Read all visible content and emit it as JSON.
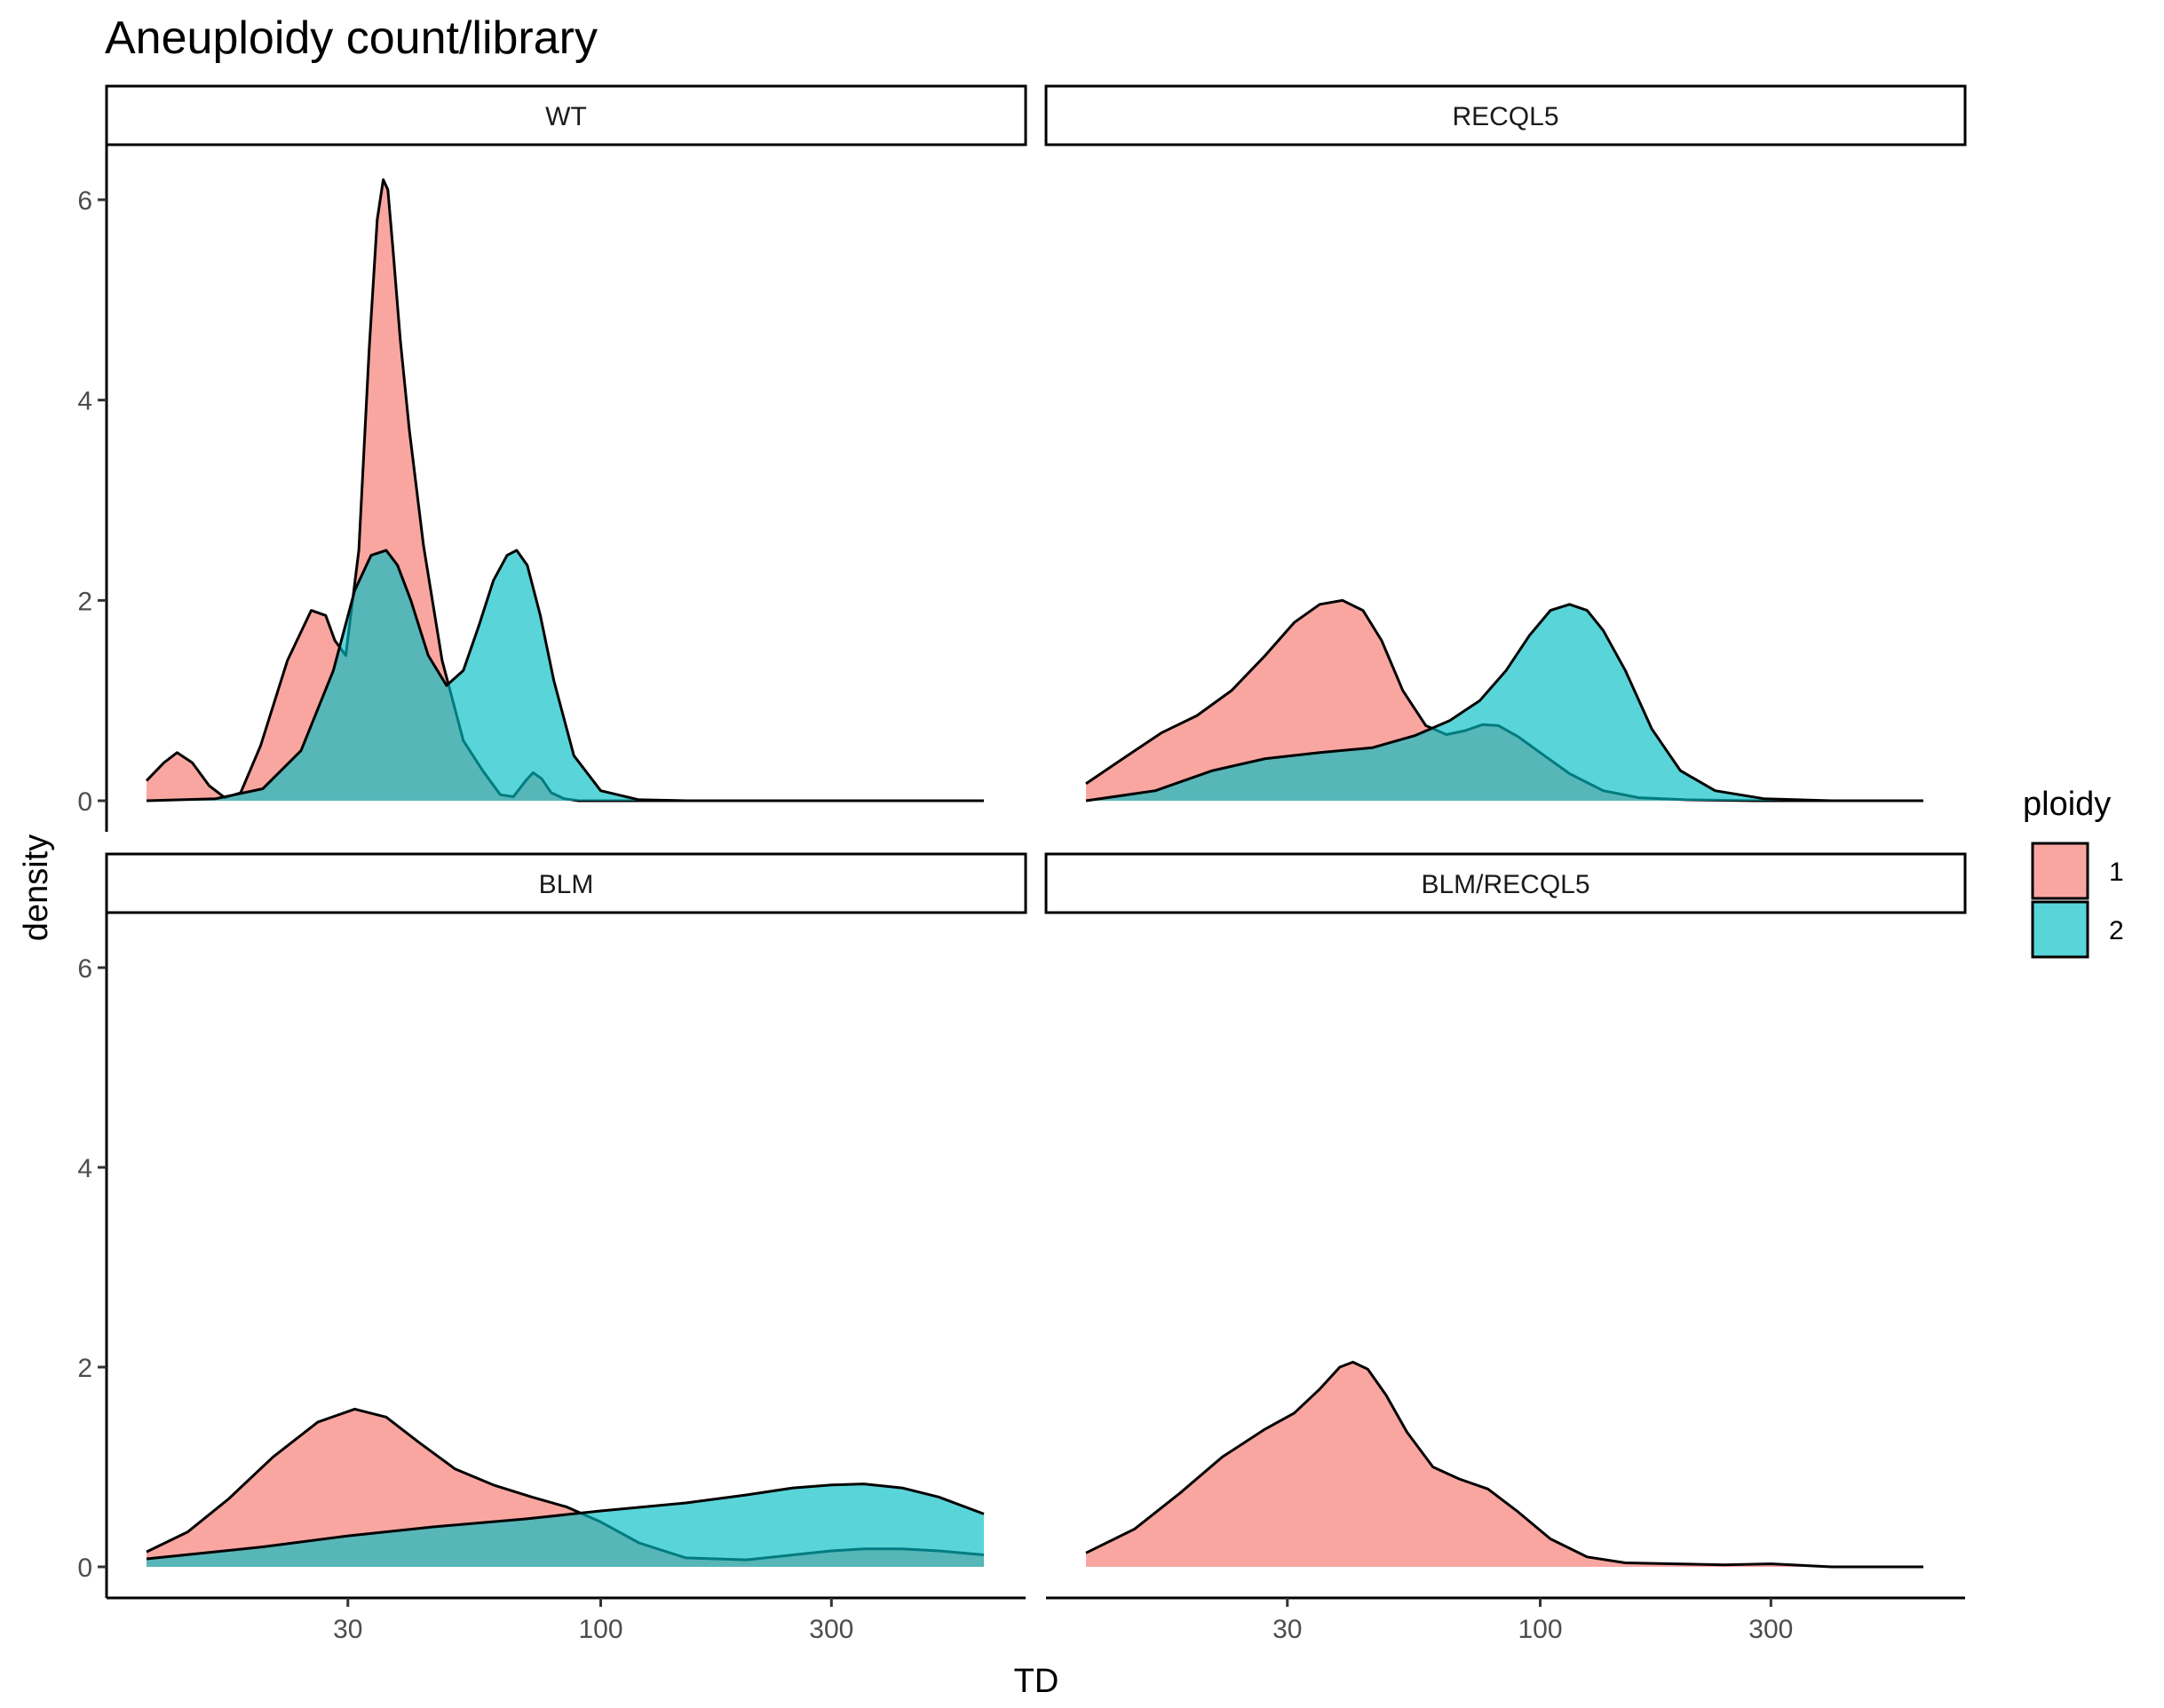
{
  "colors": {
    "ploidy_1": "#F8766D",
    "ploidy_2": "#00BFC4",
    "outline": "#000000"
  },
  "chart_data": {
    "type": "area",
    "subtype": "faceted density",
    "title": "Aneuploidy count/library",
    "xlabel": "TD",
    "ylabel": "density",
    "x_scale": "log10",
    "x_ticks": [
      30,
      100,
      300
    ],
    "x_tick_labels": [
      "30",
      "100",
      "300"
    ],
    "xlim": [
      11.5,
      620
    ],
    "y_ticks": [
      0,
      2,
      4,
      6
    ],
    "y_tick_labels": [
      "0",
      "2",
      "4",
      "6"
    ],
    "ylim": [
      0,
      6.5
    ],
    "grid": false,
    "legend": {
      "title": "ploidy",
      "position": "right",
      "entries": [
        "1",
        "2"
      ]
    },
    "facets": [
      {
        "label": "WT",
        "series": [
          {
            "group": "1",
            "x": [
              11.5,
              12.5,
              13.3,
              14.3,
              15.5,
              16.7,
              18,
              19.8,
              22.5,
              25.2,
              27,
              28.2,
              29.7,
              31.6,
              33.2,
              34.5,
              35.5,
              36.3,
              37.2,
              38.5,
              40.2,
              43,
              47,
              52,
              57,
              62,
              66,
              70,
              72.5,
              75.5,
              79,
              84,
              90,
              100,
              125,
              175,
              250,
              400,
              620
            ],
            "y": [
              0.2,
              0.38,
              0.48,
              0.38,
              0.15,
              0.03,
              0.08,
              0.55,
              1.4,
              1.9,
              1.85,
              1.6,
              1.45,
              2.5,
              4.5,
              5.8,
              6.2,
              6.1,
              5.5,
              4.6,
              3.7,
              2.55,
              1.4,
              0.6,
              0.3,
              0.06,
              0.04,
              0.2,
              0.28,
              0.22,
              0.08,
              0.02,
              0,
              0,
              0,
              0,
              0,
              0,
              0
            ]
          },
          {
            "group": "2",
            "x": [
              11.5,
              16,
              20,
              24,
              28,
              31,
              33.5,
              36,
              38,
              40.5,
              44,
              48,
              52,
              56,
              60,
              64,
              67,
              70.5,
              75,
              80,
              88,
              100,
              120,
              150,
              250,
              400,
              620
            ],
            "y": [
              0,
              0.02,
              0.12,
              0.5,
              1.3,
              2.1,
              2.45,
              2.5,
              2.35,
              2.0,
              1.45,
              1.15,
              1.3,
              1.75,
              2.2,
              2.45,
              2.5,
              2.35,
              1.85,
              1.2,
              0.45,
              0.1,
              0.01,
              0,
              0,
              0,
              0
            ]
          }
        ]
      },
      {
        "label": "RECQL5",
        "series": [
          {
            "group": "1",
            "x": [
              11.5,
              14,
              16.5,
              19.5,
              23,
              27,
              31,
              35,
              39,
              43,
              47,
              52,
              58,
              64,
              70,
              76,
              82,
              90,
              100,
              115,
              135,
              160,
              200,
              280,
              400,
              620
            ],
            "y": [
              0.17,
              0.45,
              0.68,
              0.85,
              1.1,
              1.45,
              1.78,
              1.96,
              2.0,
              1.9,
              1.6,
              1.1,
              0.75,
              0.66,
              0.7,
              0.76,
              0.75,
              0.64,
              0.48,
              0.27,
              0.1,
              0.03,
              0.01,
              0,
              0,
              0
            ]
          },
          {
            "group": "2",
            "x": [
              11.5,
              16,
              21,
              27,
              35,
              45,
              55,
              65,
              75,
              85,
              95,
              105,
              115,
              125,
              135,
              150,
              170,
              195,
              230,
              290,
              400,
              620
            ],
            "y": [
              0,
              0.1,
              0.3,
              0.42,
              0.48,
              0.53,
              0.65,
              0.8,
              1.0,
              1.3,
              1.65,
              1.9,
              1.96,
              1.9,
              1.7,
              1.3,
              0.72,
              0.3,
              0.1,
              0.02,
              0,
              0
            ]
          }
        ]
      },
      {
        "label": "BLM",
        "series": [
          {
            "group": "1",
            "x": [
              11.5,
              14,
              17,
              21,
              26,
              31,
              36,
              42,
              50,
              60,
              72,
              85,
              100,
              120,
              150,
              200,
              250,
              300,
              350,
              420,
              500,
              620
            ],
            "y": [
              0.15,
              0.35,
              0.68,
              1.1,
              1.45,
              1.58,
              1.5,
              1.25,
              0.98,
              0.82,
              0.7,
              0.6,
              0.45,
              0.24,
              0.09,
              0.07,
              0.12,
              0.16,
              0.18,
              0.18,
              0.16,
              0.12
            ]
          },
          {
            "group": "2",
            "x": [
              11.5,
              20,
              30,
              45,
              70,
              100,
              150,
              200,
              250,
              300,
              350,
              420,
              500,
              620
            ],
            "y": [
              0.08,
              0.2,
              0.31,
              0.4,
              0.48,
              0.56,
              0.64,
              0.72,
              0.79,
              0.82,
              0.83,
              0.79,
              0.7,
              0.53
            ]
          }
        ]
      },
      {
        "label": "BLM/RECQL5",
        "series": [
          {
            "group": "1",
            "x": [
              11.5,
              14.5,
              18,
              22,
              27,
              31,
              35,
              38.5,
              41,
              44,
              48,
              53,
              60,
              68,
              78,
              90,
              105,
              125,
              150,
              190,
              240,
              300,
              400,
              620
            ],
            "y": [
              0.14,
              0.38,
              0.74,
              1.1,
              1.38,
              1.54,
              1.78,
              2.0,
              2.05,
              1.98,
              1.72,
              1.35,
              1.0,
              0.88,
              0.78,
              0.55,
              0.28,
              0.1,
              0.04,
              0.03,
              0.02,
              0.03,
              0,
              0
            ]
          }
        ]
      }
    ]
  }
}
